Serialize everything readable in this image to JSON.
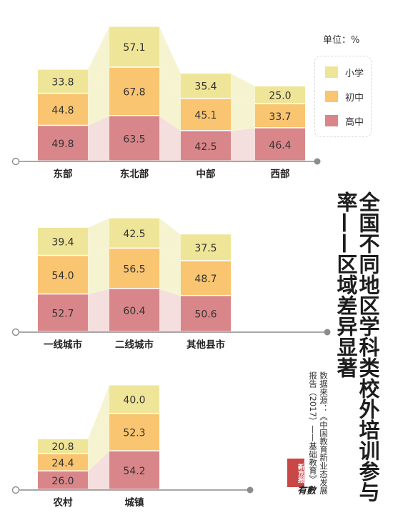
{
  "title": "全国不同地区学科类校外培训参与率——区域差异显著",
  "source": "数据来源：《中国教育新业态发展报告（2017）——基础教育》",
  "unit_label": "单位：%",
  "brand": {
    "stamp": "新京报",
    "script": "有數"
  },
  "colors": {
    "高中": "#d9868a",
    "初中": "#f9c570",
    "小学": "#efe598",
    "band": "#f5f2c8",
    "band_high": "#f4dbda",
    "axis": "#8c8c8c"
  },
  "chart_data": [
    {
      "type": "bar",
      "stacked": true,
      "categories": [
        "东部",
        "东北部",
        "中部",
        "西部"
      ],
      "series": [
        {
          "name": "高中",
          "values": [
            49.8,
            63.5,
            42.5,
            46.4
          ]
        },
        {
          "name": "初中",
          "values": [
            44.8,
            67.8,
            45.1,
            33.7
          ]
        },
        {
          "name": "小学",
          "values": [
            33.8,
            57.1,
            35.4,
            25.0
          ]
        }
      ],
      "legend": [
        "小学",
        "初中",
        "高中"
      ],
      "legend_position": "top-right"
    },
    {
      "type": "bar",
      "stacked": true,
      "categories": [
        "一线城市",
        "二线城市",
        "其他县市"
      ],
      "series": [
        {
          "name": "高中",
          "values": [
            52.7,
            60.4,
            50.6
          ]
        },
        {
          "name": "初中",
          "values": [
            54.0,
            56.5,
            48.7
          ]
        },
        {
          "name": "小学",
          "values": [
            39.4,
            42.5,
            37.5
          ]
        }
      ]
    },
    {
      "type": "bar",
      "stacked": true,
      "categories": [
        "农村",
        "城镇"
      ],
      "series": [
        {
          "name": "高中",
          "values": [
            26.0,
            54.2
          ]
        },
        {
          "name": "初中",
          "values": [
            24.4,
            52.3
          ]
        },
        {
          "name": "小学",
          "values": [
            20.8,
            40.0
          ]
        }
      ]
    }
  ]
}
